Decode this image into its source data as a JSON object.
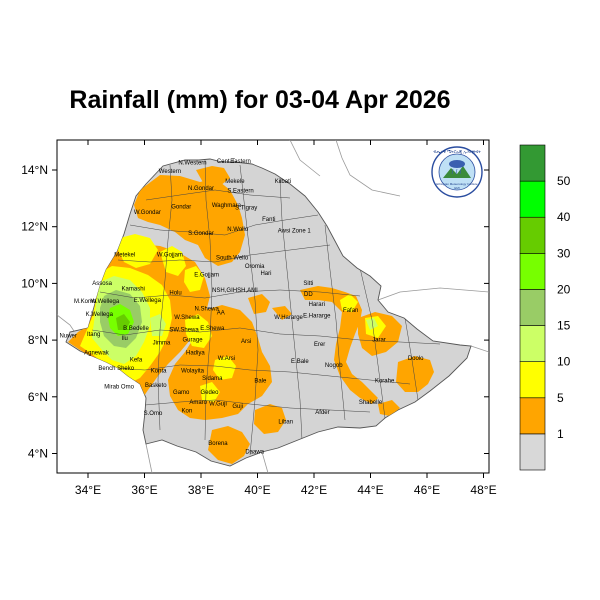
{
  "title": "Rainfall (mm) for 03-04 Apr 2026",
  "map": {
    "x_ticks": [
      "34°E",
      "36°E",
      "38°E",
      "40°E",
      "42°E",
      "44°E",
      "46°E",
      "48°E"
    ],
    "y_ticks": [
      "14°N",
      "12°N",
      "10°N",
      "8°N",
      "6°N",
      "4°N"
    ],
    "x_range": [
      33.0,
      48.5
    ],
    "y_range": [
      3.2,
      14.9
    ],
    "country_fill": "#d4d4d4",
    "place_labels": [
      {
        "text": "N.Western",
        "lon": 37.7,
        "lat": 14.2
      },
      {
        "text": "Cent.T.",
        "lon": 38.9,
        "lat": 14.25
      },
      {
        "text": "Eastern",
        "lon": 39.4,
        "lat": 14.25
      },
      {
        "text": "Western",
        "lon": 36.9,
        "lat": 13.9
      },
      {
        "text": "Mekele",
        "lon": 39.2,
        "lat": 13.55
      },
      {
        "text": "N.Gondar",
        "lon": 38.0,
        "lat": 13.3
      },
      {
        "text": "S.Eastern",
        "lon": 39.4,
        "lat": 13.2
      },
      {
        "text": "Kilbati",
        "lon": 40.9,
        "lat": 13.55
      },
      {
        "text": "Waghmara",
        "lon": 38.9,
        "lat": 12.7
      },
      {
        "text": "S.Tigray",
        "lon": 39.6,
        "lat": 12.6
      },
      {
        "text": "Gondar",
        "lon": 37.3,
        "lat": 12.65
      },
      {
        "text": "W.Gondar",
        "lon": 36.1,
        "lat": 12.45
      },
      {
        "text": "Fanti",
        "lon": 40.4,
        "lat": 12.2
      },
      {
        "text": "N.Wollo",
        "lon": 39.3,
        "lat": 11.85
      },
      {
        "text": "S.Gondar",
        "lon": 38.0,
        "lat": 11.7
      },
      {
        "text": "Awsi Zone 1",
        "lon": 41.3,
        "lat": 11.8
      },
      {
        "text": "Metekel",
        "lon": 35.3,
        "lat": 10.95
      },
      {
        "text": "W.Gojjam",
        "lon": 36.9,
        "lat": 10.95
      },
      {
        "text": "South Wello",
        "lon": 39.1,
        "lat": 10.85
      },
      {
        "text": "Oromia",
        "lon": 39.9,
        "lat": 10.55
      },
      {
        "text": "Hari",
        "lon": 40.3,
        "lat": 10.3
      },
      {
        "text": "E.Gojjam",
        "lon": 38.2,
        "lat": 10.25
      },
      {
        "text": "Sitti",
        "lon": 41.8,
        "lat": 9.95
      },
      {
        "text": "Assosa",
        "lon": 34.5,
        "lat": 9.95
      },
      {
        "text": "Kamashi",
        "lon": 35.6,
        "lat": 9.75
      },
      {
        "text": "NSH,GIHSH,AMI",
        "lon": 39.2,
        "lat": 9.7
      },
      {
        "text": "Holu",
        "lon": 37.1,
        "lat": 9.6
      },
      {
        "text": "M.Komo",
        "lon": 33.9,
        "lat": 9.3
      },
      {
        "text": "W.Wellega",
        "lon": 34.6,
        "lat": 9.3
      },
      {
        "text": "E.Wellega",
        "lon": 36.1,
        "lat": 9.35
      },
      {
        "text": "N.Shewa",
        "lon": 38.2,
        "lat": 9.05
      },
      {
        "text": "W.Shewa",
        "lon": 37.5,
        "lat": 8.75
      },
      {
        "text": "W.Hararge",
        "lon": 41.1,
        "lat": 8.75
      },
      {
        "text": "Harari",
        "lon": 42.1,
        "lat": 9.2
      },
      {
        "text": "E.Hararge",
        "lon": 42.1,
        "lat": 8.8
      },
      {
        "text": "DD",
        "lon": 41.8,
        "lat": 9.55
      },
      {
        "text": "Fafan",
        "lon": 43.3,
        "lat": 9.0
      },
      {
        "text": "K.Wellega",
        "lon": 34.4,
        "lat": 8.85
      },
      {
        "text": "SW.Shewa",
        "lon": 37.4,
        "lat": 8.3
      },
      {
        "text": "E.Shewa",
        "lon": 38.4,
        "lat": 8.35
      },
      {
        "text": "AA",
        "lon": 38.7,
        "lat": 8.9
      },
      {
        "text": "B.Bedelle",
        "lon": 35.7,
        "lat": 8.35
      },
      {
        "text": "Ilu",
        "lon": 35.3,
        "lat": 8.0
      },
      {
        "text": "Nuwer",
        "lon": 33.3,
        "lat": 8.1
      },
      {
        "text": "Itang",
        "lon": 34.2,
        "lat": 8.15
      },
      {
        "text": "Jimma",
        "lon": 36.6,
        "lat": 7.85
      },
      {
        "text": "Gurage",
        "lon": 37.7,
        "lat": 7.95
      },
      {
        "text": "Arsi",
        "lon": 39.6,
        "lat": 7.9
      },
      {
        "text": "W.Arsi",
        "lon": 38.9,
        "lat": 7.3
      },
      {
        "text": "Jarar",
        "lon": 44.3,
        "lat": 7.95
      },
      {
        "text": "Erer",
        "lon": 42.2,
        "lat": 7.8
      },
      {
        "text": "Agnewak",
        "lon": 34.3,
        "lat": 7.5
      },
      {
        "text": "E.Bale",
        "lon": 41.5,
        "lat": 7.2
      },
      {
        "text": "Nogob",
        "lon": 42.7,
        "lat": 7.05
      },
      {
        "text": "Doolo",
        "lon": 45.6,
        "lat": 7.3
      },
      {
        "text": "Kefa",
        "lon": 35.7,
        "lat": 7.25
      },
      {
        "text": "Hadiya",
        "lon": 37.8,
        "lat": 7.5
      },
      {
        "text": "Bench Sheko",
        "lon": 35.0,
        "lat": 6.95
      },
      {
        "text": "Konta",
        "lon": 36.5,
        "lat": 6.85
      },
      {
        "text": "Wolayita",
        "lon": 37.7,
        "lat": 6.85
      },
      {
        "text": "Sidama",
        "lon": 38.4,
        "lat": 6.6
      },
      {
        "text": "Bale",
        "lon": 40.1,
        "lat": 6.5
      },
      {
        "text": "Korahe",
        "lon": 44.5,
        "lat": 6.5
      },
      {
        "text": "Basketo",
        "lon": 36.4,
        "lat": 6.35
      },
      {
        "text": "Mirab Omo",
        "lon": 35.1,
        "lat": 6.3
      },
      {
        "text": "Gamo",
        "lon": 37.3,
        "lat": 6.1
      },
      {
        "text": "Gedeo",
        "lon": 38.3,
        "lat": 6.1
      },
      {
        "text": "Amaro",
        "lon": 37.9,
        "lat": 5.75
      },
      {
        "text": "W.Guji",
        "lon": 38.6,
        "lat": 5.7
      },
      {
        "text": "Shabelle",
        "lon": 44.0,
        "lat": 5.75
      },
      {
        "text": "S.Omo",
        "lon": 36.3,
        "lat": 5.35
      },
      {
        "text": "Kon",
        "lon": 37.5,
        "lat": 5.45
      },
      {
        "text": "Guji",
        "lon": 39.3,
        "lat": 5.6
      },
      {
        "text": "Liban",
        "lon": 41.0,
        "lat": 5.05
      },
      {
        "text": "Afder",
        "lon": 42.3,
        "lat": 5.4
      },
      {
        "text": "Borena",
        "lon": 38.6,
        "lat": 4.3
      },
      {
        "text": "Daawa",
        "lon": 39.9,
        "lat": 4.0
      }
    ]
  },
  "colorbar": {
    "labels": [
      "1",
      "5",
      "10",
      "15",
      "20",
      "30",
      "40",
      "50"
    ],
    "colors": [
      "#d8d8d8",
      "#ffa500",
      "#ffff00",
      "#ccff66",
      "#99cc66",
      "#77ff00",
      "#66cc00",
      "#00ff00",
      "#339933"
    ]
  },
  "logo": {
    "top_text": "ብሔራዊ ሜትሮሎጂ ኢንስቲትዩት",
    "bottom_text": "Ethiopian Meteorology Institute",
    "bottom_text2": "EMI"
  }
}
